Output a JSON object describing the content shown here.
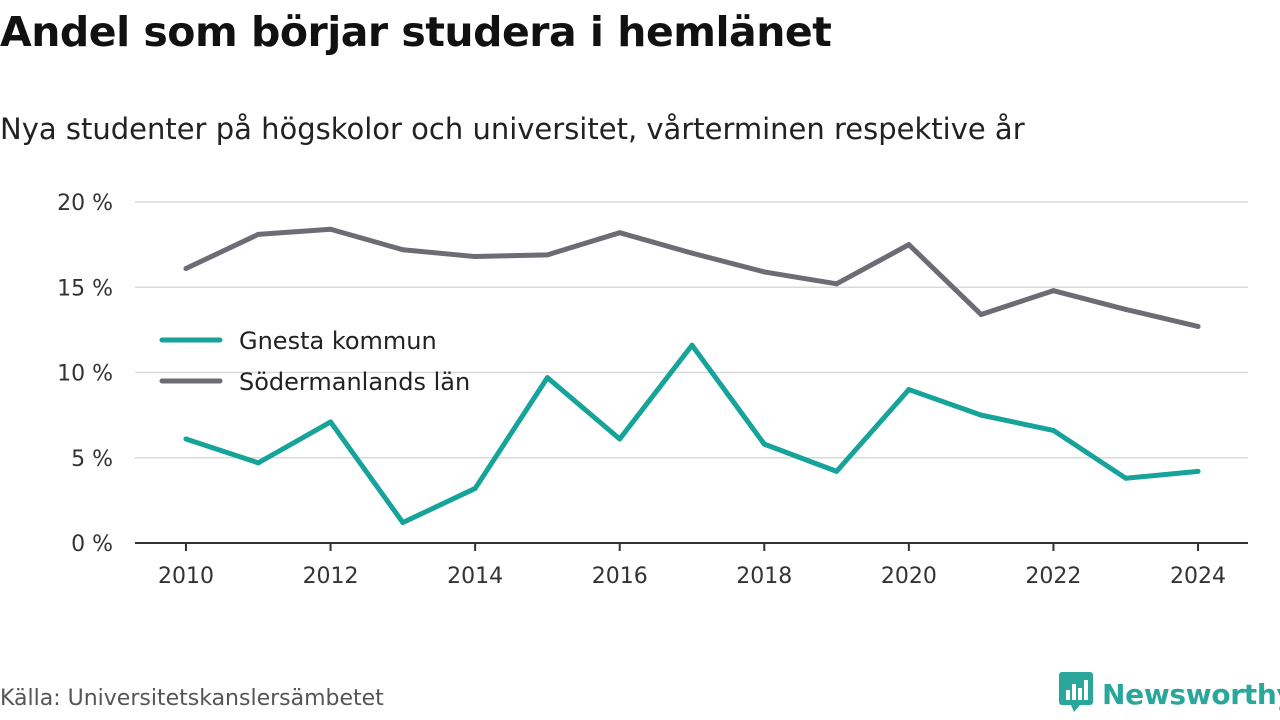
{
  "header": {
    "title": "Andel som börjar studera i hemlänet",
    "subtitle": "Nya studenter på högskolor och universitet, vårterminen respektive år"
  },
  "footer": {
    "source": "Källa: Universitetskanslersämbetet",
    "brand": "Newsworthy",
    "brand_color": "#29a79a"
  },
  "chart_data": {
    "type": "line",
    "title": "Andel som börjar studera i hemlänet",
    "subtitle": "Nya studenter på högskolor och universitet, vårterminen respektive år",
    "x": [
      2010,
      2011,
      2012,
      2013,
      2014,
      2015,
      2016,
      2017,
      2018,
      2019,
      2020,
      2021,
      2022,
      2023,
      2024
    ],
    "x_ticks": [
      "2010",
      "2012",
      "2014",
      "2016",
      "2018",
      "2020",
      "2022",
      "2024"
    ],
    "y_ticks": [
      "0 %",
      "5 %",
      "10 %",
      "15 %",
      "20 %"
    ],
    "ylim": [
      0,
      20
    ],
    "grid": true,
    "legend_position": "left, inside plot",
    "series": [
      {
        "name": "Gnesta kommun",
        "color": "#15a39a",
        "values": [
          6.1,
          4.7,
          7.1,
          1.2,
          3.2,
          9.7,
          6.1,
          11.6,
          5.8,
          4.2,
          9.0,
          7.5,
          6.6,
          3.8,
          4.2
        ]
      },
      {
        "name": "Södermanlands län",
        "color": "#6d6c74",
        "values": [
          16.1,
          18.1,
          18.4,
          17.2,
          16.8,
          16.9,
          18.2,
          17.0,
          15.9,
          15.2,
          17.5,
          13.4,
          14.8,
          13.7,
          12.7
        ]
      }
    ]
  }
}
